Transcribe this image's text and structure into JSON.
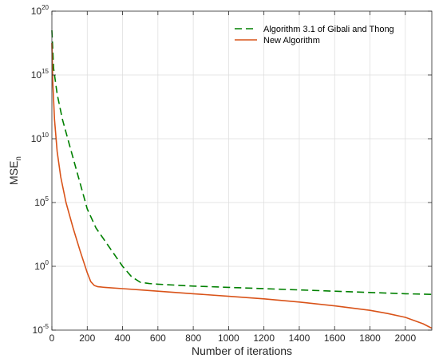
{
  "chart_data": {
    "type": "line",
    "title": "",
    "xlabel": "Number of iterations",
    "ylabel": "MSE",
    "ylabel_subscript": "n",
    "xlim": [
      0,
      2150
    ],
    "ylim_log10": [
      -5,
      20
    ],
    "y_scale": "log",
    "grid": true,
    "legend_position": "top-right",
    "x_ticks": [
      {
        "value": 0,
        "label": "0"
      },
      {
        "value": 200,
        "label": "200"
      },
      {
        "value": 400,
        "label": "400"
      },
      {
        "value": 600,
        "label": "600"
      },
      {
        "value": 800,
        "label": "800"
      },
      {
        "value": 1000,
        "label": "1000"
      },
      {
        "value": 1200,
        "label": "1200"
      },
      {
        "value": 1400,
        "label": "1400"
      },
      {
        "value": 1600,
        "label": "1600"
      },
      {
        "value": 1800,
        "label": "1800"
      },
      {
        "value": 2000,
        "label": "2000"
      }
    ],
    "y_ticks": [
      {
        "exp": -5,
        "base": "10",
        "power": "-5"
      },
      {
        "exp": 0,
        "base": "10",
        "power": "0"
      },
      {
        "exp": 5,
        "base": "10",
        "power": "5"
      },
      {
        "exp": 10,
        "base": "10",
        "power": "10"
      },
      {
        "exp": 15,
        "base": "10",
        "power": "15"
      },
      {
        "exp": 20,
        "base": "10",
        "power": "20"
      }
    ],
    "series": [
      {
        "name": "Algorithm 3.1 of Gibali and Thong",
        "color": "#008000",
        "style": "dashed",
        "x": [
          0,
          10,
          30,
          60,
          100,
          150,
          200,
          250,
          300,
          350,
          400,
          450,
          500,
          550,
          600,
          800,
          1000,
          1200,
          1400,
          1600,
          1800,
          2000,
          2150
        ],
        "log10_y": [
          18.5,
          15.5,
          13.5,
          11.5,
          9.5,
          7.0,
          4.5,
          3.0,
          2.0,
          1.0,
          0.0,
          -0.8,
          -1.25,
          -1.35,
          -1.4,
          -1.55,
          -1.65,
          -1.75,
          -1.85,
          -1.95,
          -2.05,
          -2.15,
          -2.2
        ]
      },
      {
        "name": "New Algorithm",
        "color": "#D95319",
        "style": "solid",
        "x": [
          0,
          5,
          15,
          30,
          50,
          80,
          120,
          160,
          200,
          220,
          240,
          260,
          300,
          400,
          500,
          600,
          800,
          1000,
          1200,
          1400,
          1600,
          1800,
          1900,
          2000,
          2100,
          2150
        ],
        "log10_y": [
          17.5,
          14.5,
          11.5,
          9.0,
          7.0,
          5.0,
          3.0,
          1.2,
          -0.5,
          -1.2,
          -1.5,
          -1.6,
          -1.65,
          -1.75,
          -1.85,
          -1.95,
          -2.15,
          -2.35,
          -2.55,
          -2.8,
          -3.1,
          -3.45,
          -3.7,
          -4.0,
          -4.5,
          -4.85
        ]
      }
    ]
  }
}
